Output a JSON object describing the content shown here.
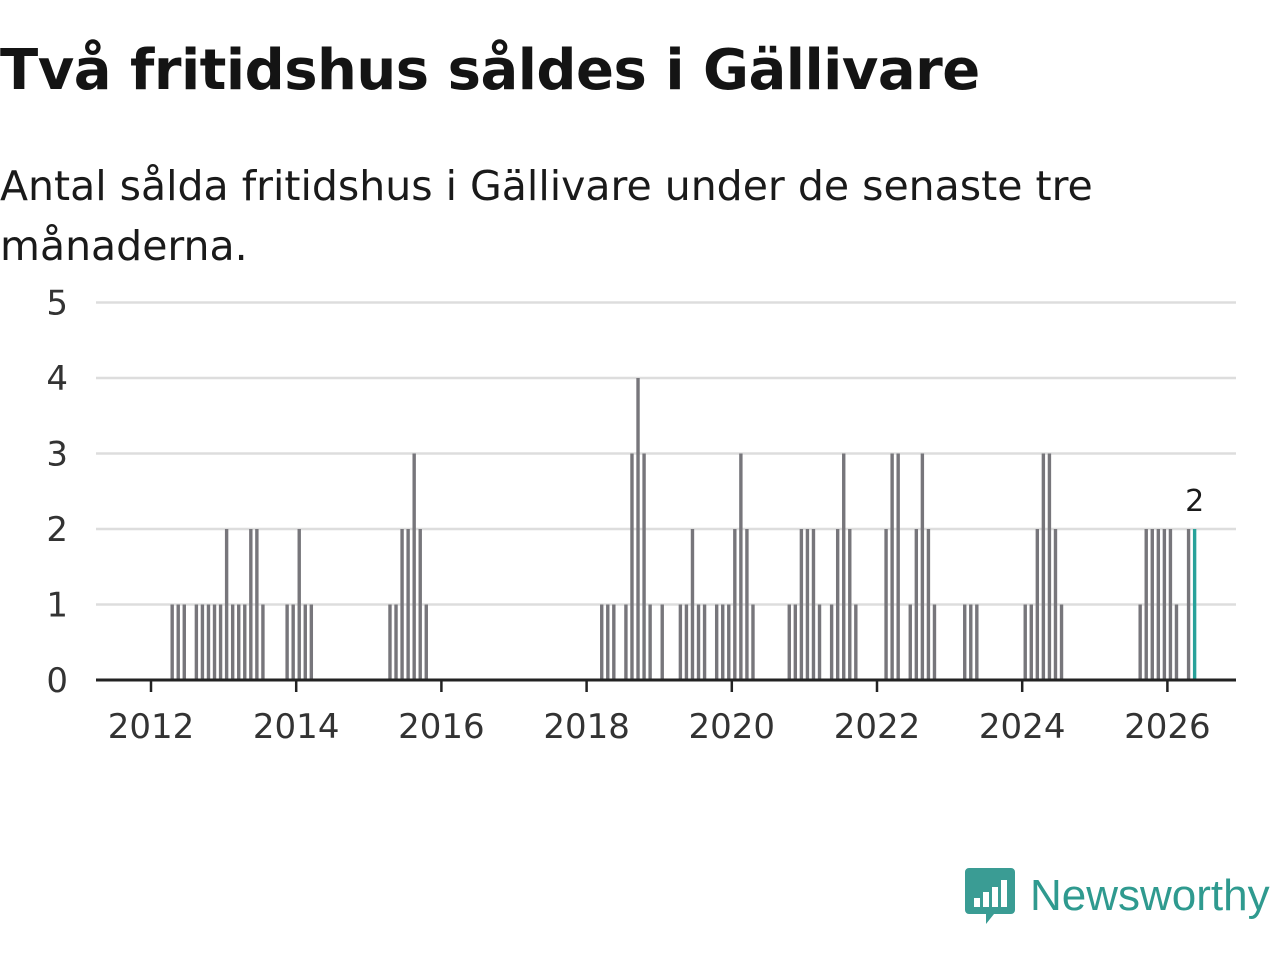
{
  "header": {
    "title": "Två fritidshus såldes i Gällivare",
    "subtitle": "Antal sålda fritidshus i Gällivare under de senaste tre månaderna."
  },
  "chart_data": {
    "type": "bar",
    "title": "Två fritidshus såldes i Gällivare",
    "subtitle": "Antal sålda fritidshus i Gällivare under de senaste tre månaderna.",
    "xlabel": "",
    "ylabel": "",
    "ylim": [
      0,
      5
    ],
    "y_ticks": [
      0,
      1,
      2,
      3,
      4,
      5
    ],
    "x_ticks": [
      "2012",
      "2014",
      "2016",
      "2018",
      "2020",
      "2022",
      "2024",
      "2026"
    ],
    "grid": true,
    "bar_color": "#77767b",
    "highlight_color": "#28a29a",
    "highlight_label": "2",
    "start": "2012-01",
    "values": [
      0,
      0,
      0,
      1,
      1,
      1,
      0,
      1,
      1,
      1,
      1,
      1,
      2,
      1,
      1,
      1,
      2,
      2,
      1,
      0,
      0,
      0,
      1,
      1,
      2,
      1,
      1,
      0,
      0,
      0,
      0,
      0,
      0,
      0,
      0,
      0,
      0,
      0,
      0,
      1,
      1,
      2,
      2,
      3,
      2,
      1,
      0,
      0,
      0,
      0,
      0,
      0,
      0,
      0,
      0,
      0,
      0,
      0,
      0,
      0,
      0,
      0,
      0,
      0,
      0,
      0,
      0,
      0,
      0,
      0,
      0,
      0,
      0,
      0,
      1,
      1,
      1,
      0,
      1,
      3,
      4,
      3,
      1,
      0,
      1,
      0,
      0,
      1,
      1,
      2,
      1,
      1,
      0,
      1,
      1,
      1,
      2,
      3,
      2,
      1,
      0,
      0,
      0,
      0,
      0,
      1,
      1,
      2,
      2,
      2,
      1,
      0,
      1,
      2,
      3,
      2,
      1,
      0,
      0,
      0,
      0,
      2,
      3,
      3,
      0,
      1,
      2,
      3,
      2,
      1,
      0,
      0,
      0,
      0,
      1,
      1,
      1,
      0,
      0,
      0,
      0,
      0,
      0,
      0,
      1,
      1,
      2,
      3,
      3,
      2,
      1,
      0,
      0,
      0,
      0,
      0,
      0,
      0,
      0,
      0,
      0,
      0,
      0,
      1,
      2,
      2,
      2,
      2,
      2,
      1,
      0,
      2,
      2
    ]
  },
  "branding": {
    "logo_text": "Newsworthy",
    "logo_color": "#3a9c94"
  }
}
